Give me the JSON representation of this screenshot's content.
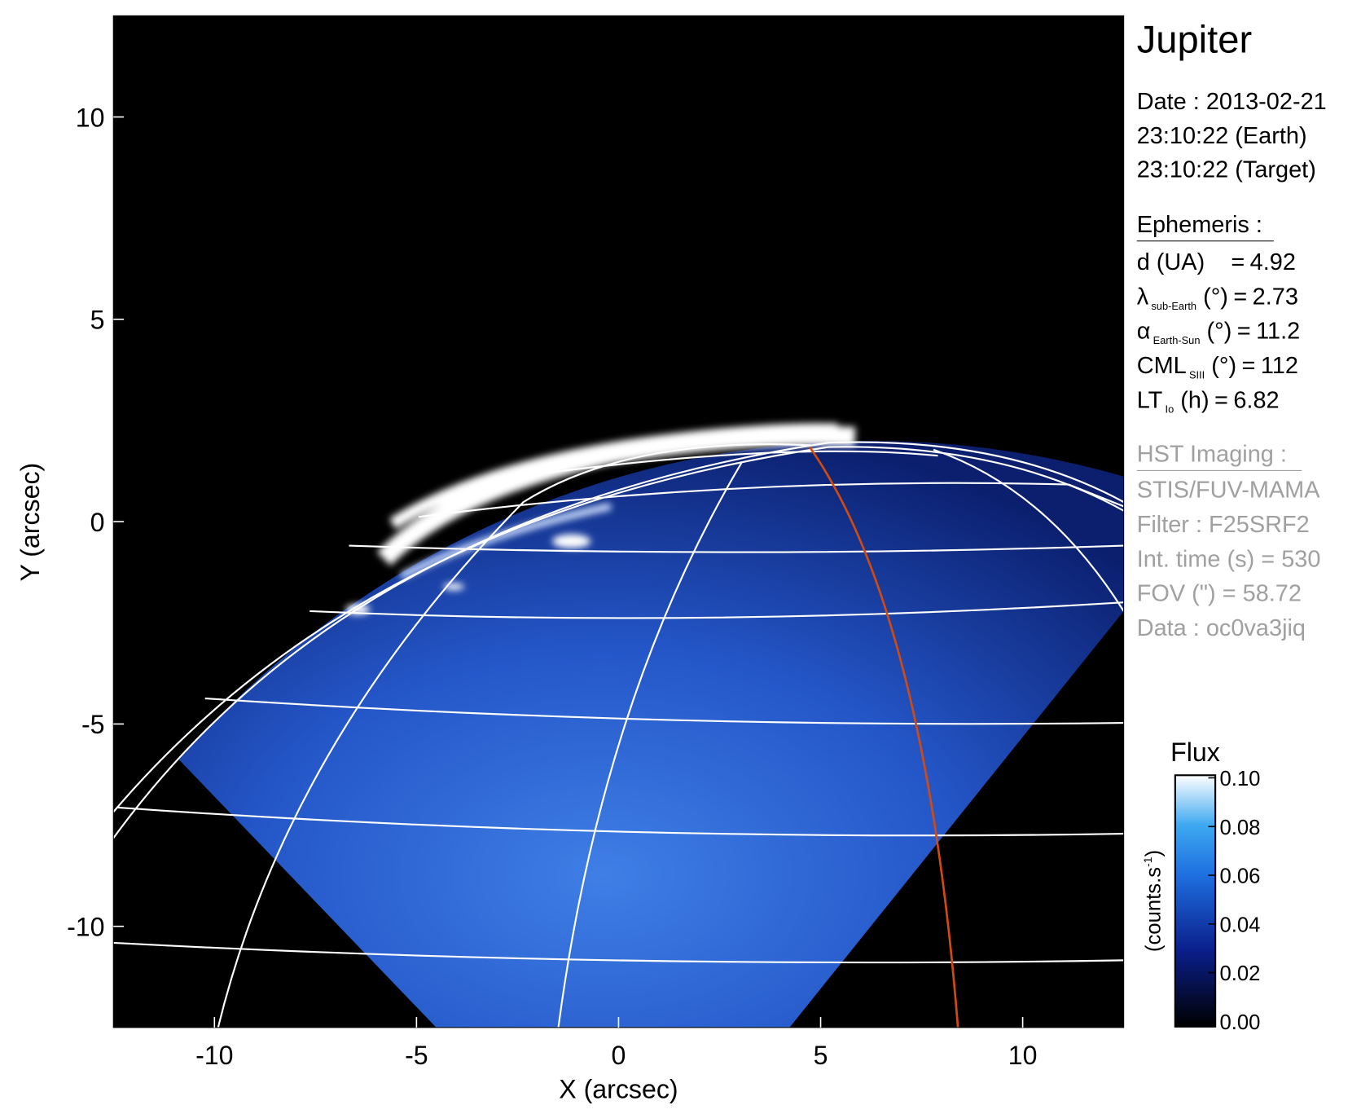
{
  "chart_data": {
    "type": "image",
    "x_label": "X (arcsec)",
    "y_label": "Y (arcsec)",
    "xlim": [
      -12.5,
      12.5
    ],
    "ylim": [
      -12.5,
      12.5
    ],
    "xticks": [
      -10,
      -5,
      0,
      5,
      10
    ],
    "yticks": [
      -10,
      -5,
      0,
      5,
      10
    ],
    "colorbar": {
      "title": "Flux",
      "label": {
        "text": "(counts.s",
        "sup": "-1",
        "end": ")"
      },
      "lim": [
        0,
        0.1
      ],
      "ticks": [
        {
          "value": 0,
          "label": "0.00"
        },
        {
          "value": 0.02,
          "label": "0.02"
        },
        {
          "value": 0.04,
          "label": "0.04"
        },
        {
          "value": 0.06,
          "label": "0.06"
        },
        {
          "value": 0.08,
          "label": "0.08"
        },
        {
          "value": 0.1,
          "label": "0.10"
        }
      ]
    }
  },
  "info": {
    "planet": "Jupiter",
    "date_lines": [
      "Date : 2013-02-21",
      "23:10:22 (Earth)",
      "23:10:22 (Target)"
    ],
    "ephemeris_title": "Ephemeris :",
    "ephemeris": [
      {
        "symbol": "d (UA)",
        "sub": null,
        "unit": "",
        "sep": "=",
        "value": 4.92
      },
      {
        "symbol": "λ",
        "sub": "sub-Earth",
        "unit": "(°)",
        "sep": "=",
        "value": 2.73
      },
      {
        "symbol": "α",
        "sub": "Earth-Sun",
        "unit": "(°)",
        "sep": "=",
        "value": 11.2
      },
      {
        "symbol": "CML",
        "sub": "SIII",
        "unit": "(°)",
        "sep": "=",
        "value": 112
      },
      {
        "symbol": "LT",
        "sub": "Io",
        "unit": "(h)",
        "sep": "=",
        "value": 6.82
      }
    ],
    "imaging_title": "HST Imaging :",
    "imaging": [
      "STIS/FUV-MAMA",
      "Filter : F25SRF2",
      "Int. time (s) = 530",
      "FOV (\") = 58.72",
      "Data : oc0va3jiq"
    ]
  }
}
